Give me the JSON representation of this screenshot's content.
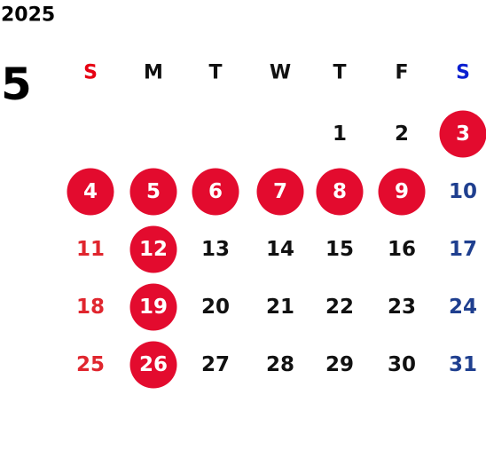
{
  "year": "2025",
  "month": "5",
  "weekdays": [
    "S",
    "M",
    "T",
    "W",
    "T",
    "F",
    "S"
  ],
  "weeks": [
    [
      null,
      null,
      null,
      null,
      {
        "day": "1",
        "holiday": false
      },
      {
        "day": "2",
        "holiday": false
      },
      {
        "day": "3",
        "holiday": true
      }
    ],
    [
      {
        "day": "4",
        "holiday": true
      },
      {
        "day": "5",
        "holiday": true
      },
      {
        "day": "6",
        "holiday": true
      },
      {
        "day": "7",
        "holiday": true
      },
      {
        "day": "8",
        "holiday": true
      },
      {
        "day": "9",
        "holiday": true
      },
      {
        "day": "10",
        "holiday": false
      }
    ],
    [
      {
        "day": "11",
        "holiday": false
      },
      {
        "day": "12",
        "holiday": true
      },
      {
        "day": "13",
        "holiday": false
      },
      {
        "day": "14",
        "holiday": false
      },
      {
        "day": "15",
        "holiday": false
      },
      {
        "day": "16",
        "holiday": false
      },
      {
        "day": "17",
        "holiday": false
      }
    ],
    [
      {
        "day": "18",
        "holiday": false
      },
      {
        "day": "19",
        "holiday": true
      },
      {
        "day": "20",
        "holiday": false
      },
      {
        "day": "21",
        "holiday": false
      },
      {
        "day": "22",
        "holiday": false
      },
      {
        "day": "23",
        "holiday": false
      },
      {
        "day": "24",
        "holiday": false
      }
    ],
    [
      {
        "day": "25",
        "holiday": false
      },
      {
        "day": "26",
        "holiday": true
      },
      {
        "day": "27",
        "holiday": false
      },
      {
        "day": "28",
        "holiday": false
      },
      {
        "day": "29",
        "holiday": false
      },
      {
        "day": "30",
        "holiday": false
      },
      {
        "day": "31",
        "holiday": false
      }
    ]
  ]
}
